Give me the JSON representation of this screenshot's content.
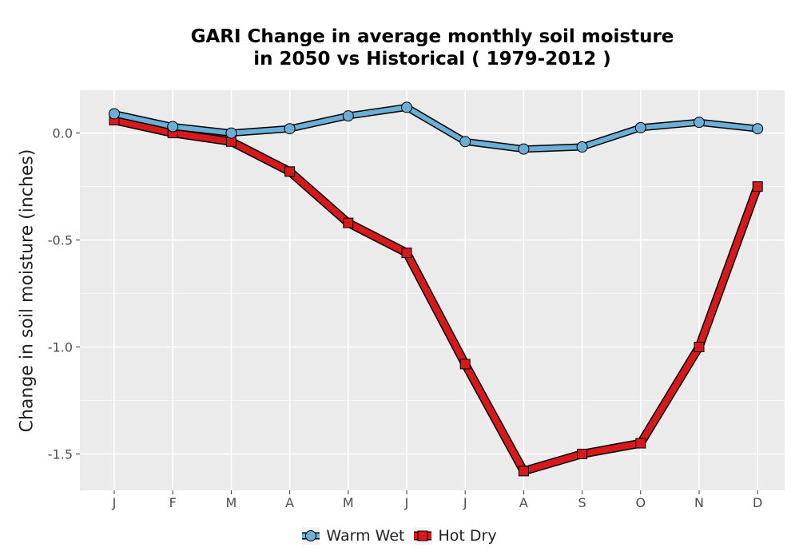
{
  "chart_data": {
    "type": "line",
    "title_line1": "GARI  Change in average monthly soil moisture",
    "title_line2": "in 2050 vs Historical ( 1979-2012 )",
    "ylabel": "Change in soil moisture (inches)",
    "xlabel": "",
    "categories": [
      "J",
      "F",
      "M",
      "A",
      "M",
      "J",
      "J",
      "A",
      "S",
      "O",
      "N",
      "D"
    ],
    "ylim": [
      -1.67,
      0.2
    ],
    "yticks": [
      0.0,
      -0.5,
      -1.0,
      -1.5
    ],
    "ytick_labels": [
      "0.0",
      "-0.5",
      "-1.0",
      "-1.5"
    ],
    "grid": true,
    "legend_position": "bottom",
    "series": [
      {
        "name": "Warm Wet",
        "marker": "circle",
        "color": "#6baed6",
        "values": [
          0.09,
          0.03,
          0.0,
          0.02,
          0.08,
          0.12,
          -0.04,
          -0.075,
          -0.065,
          0.025,
          0.05,
          0.02
        ]
      },
      {
        "name": "Hot Dry",
        "marker": "square",
        "color": "#d7191c",
        "values": [
          0.06,
          0.0,
          -0.04,
          -0.18,
          -0.42,
          -0.56,
          -1.08,
          -1.58,
          -1.5,
          -1.45,
          -1.0,
          -0.25
        ]
      }
    ]
  }
}
